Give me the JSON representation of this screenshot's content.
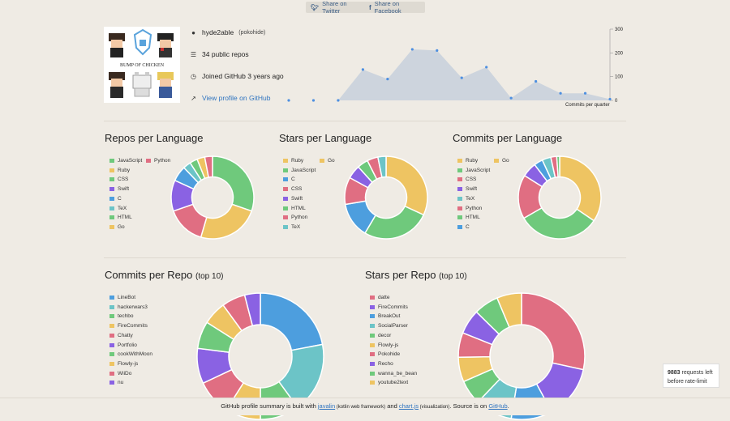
{
  "share": {
    "twitter": "Share on Twitter",
    "facebook": "Share on Facebook"
  },
  "profile": {
    "username": "hyde2able",
    "handle": "(pokohide)",
    "public_repos": "34 public repos",
    "joined": "Joined GitHub 3 years ago",
    "view_profile": "View profile on GitHub",
    "avatar_text": "BUMP OF CHICKEN"
  },
  "commits_chart": {
    "caption": "Commits per quarter",
    "chart_data": {
      "type": "area",
      "x": [
        1,
        2,
        3,
        4,
        5,
        6,
        7,
        8,
        9,
        10,
        11,
        12,
        13,
        14
      ],
      "values": [
        0,
        0,
        0,
        130,
        90,
        215,
        210,
        95,
        140,
        10,
        80,
        30,
        30,
        5
      ],
      "ylim": [
        0,
        300
      ],
      "yticks": [
        "300",
        "200",
        "100",
        "0"
      ]
    }
  },
  "sections": {
    "repos_lang": "Repos per Language",
    "stars_lang": "Stars per Language",
    "commits_lang": "Commits per Language",
    "commits_repo": "Commits per Repo",
    "stars_repo": "Stars per Repo",
    "top10": "(top 10)"
  },
  "colors": {
    "green": "#6fc97c",
    "yellow": "#eec462",
    "blue": "#4d9ede",
    "purple": "#8a62e3",
    "teal": "#6cc4c7",
    "red": "#e06e82"
  },
  "chart_data": [
    {
      "type": "pie",
      "name": "repos_lang",
      "legend": [
        "JavaScript",
        "Python",
        "Ruby",
        "CSS",
        "Swift",
        "C",
        "TeX",
        "HTML",
        "Go"
      ],
      "slices": [
        {
          "label": "JavaScript",
          "value": 10,
          "color": "#6fc97c"
        },
        {
          "label": "Ruby",
          "value": 8,
          "color": "#eec462"
        },
        {
          "label": "Python",
          "value": 5,
          "color": "#e06e82"
        },
        {
          "label": "Swift",
          "value": 4,
          "color": "#8a62e3"
        },
        {
          "label": "C",
          "value": 2,
          "color": "#4d9ede"
        },
        {
          "label": "TeX",
          "value": 1,
          "color": "#6cc4c7"
        },
        {
          "label": "CSS",
          "value": 1,
          "color": "#6fc97c"
        },
        {
          "label": "Go",
          "value": 1,
          "color": "#eec462"
        },
        {
          "label": "HTML",
          "value": 1,
          "color": "#e06e82"
        }
      ]
    },
    {
      "type": "pie",
      "name": "stars_lang",
      "legend": [
        "Ruby",
        "Go",
        "JavaScript",
        "C",
        "CSS",
        "Swift",
        "HTML",
        "Python",
        "TeX"
      ],
      "slices": [
        {
          "label": "Ruby",
          "value": 30,
          "color": "#eec462"
        },
        {
          "label": "JavaScript",
          "value": 25,
          "color": "#6fc97c"
        },
        {
          "label": "C",
          "value": 13,
          "color": "#4d9ede"
        },
        {
          "label": "CSS",
          "value": 10,
          "color": "#e06e82"
        },
        {
          "label": "Swift",
          "value": 5,
          "color": "#8a62e3"
        },
        {
          "label": "HTML",
          "value": 4,
          "color": "#6fc97c"
        },
        {
          "label": "Python",
          "value": 4,
          "color": "#e06e82"
        },
        {
          "label": "TeX",
          "value": 3,
          "color": "#6cc4c7"
        }
      ]
    },
    {
      "type": "pie",
      "name": "commits_lang",
      "legend": [
        "Ruby",
        "Go",
        "JavaScript",
        "CSS",
        "Swift",
        "TeX",
        "Python",
        "HTML",
        "C"
      ],
      "slices": [
        {
          "label": "Ruby",
          "value": 30,
          "color": "#eec462"
        },
        {
          "label": "JavaScript",
          "value": 28,
          "color": "#6fc97c"
        },
        {
          "label": "Python",
          "value": 15,
          "color": "#e06e82"
        },
        {
          "label": "Swift",
          "value": 5,
          "color": "#8a62e3"
        },
        {
          "label": "C",
          "value": 3,
          "color": "#4d9ede"
        },
        {
          "label": "TeX",
          "value": 3,
          "color": "#6cc4c7"
        },
        {
          "label": "HTML",
          "value": 2,
          "color": "#e06e82"
        },
        {
          "label": "CSS",
          "value": 1,
          "color": "#6fc97c"
        }
      ]
    },
    {
      "type": "pie",
      "name": "commits_repo",
      "legend": [
        "LineBot",
        "hackerwars3",
        "techbo",
        "FireCommits",
        "Chatty",
        "Portfolio",
        "cookWithMoon",
        "Flowly-js",
        "WiiDo",
        "nu"
      ],
      "slices": [
        {
          "label": "LineBot",
          "value": 22,
          "color": "#4d9ede"
        },
        {
          "label": "hackerwars3",
          "value": 18,
          "color": "#6cc4c7"
        },
        {
          "label": "techbo",
          "value": 10,
          "color": "#6fc97c"
        },
        {
          "label": "FireCommits",
          "value": 9,
          "color": "#eec462"
        },
        {
          "label": "Chatty",
          "value": 9,
          "color": "#e06e82"
        },
        {
          "label": "Portfolio",
          "value": 9,
          "color": "#8a62e3"
        },
        {
          "label": "cookWithMoon",
          "value": 7,
          "color": "#6fc97c"
        },
        {
          "label": "Flowly-js",
          "value": 6,
          "color": "#eec462"
        },
        {
          "label": "WiiDo",
          "value": 6,
          "color": "#e06e82"
        },
        {
          "label": "nu",
          "value": 4,
          "color": "#8a62e3"
        }
      ]
    },
    {
      "type": "pie",
      "name": "stars_repo",
      "legend": [
        "datte",
        "FireCommits",
        "BreakOut",
        "SocialParser",
        "decor",
        "Flowly-js",
        "Pokohide",
        "Recho",
        "wanna_be_bean",
        "youtube2text"
      ],
      "slices": [
        {
          "label": "datte",
          "value": 27,
          "color": "#e06e82"
        },
        {
          "label": "FireCommits",
          "value": 13,
          "color": "#8a62e3"
        },
        {
          "label": "BreakOut",
          "value": 10,
          "color": "#4d9ede"
        },
        {
          "label": "SocialParser",
          "value": 9,
          "color": "#6cc4c7"
        },
        {
          "label": "decor",
          "value": 6,
          "color": "#6fc97c"
        },
        {
          "label": "Flowly-js",
          "value": 6,
          "color": "#eec462"
        },
        {
          "label": "Pokohide",
          "value": 6,
          "color": "#e06e82"
        },
        {
          "label": "Recho",
          "value": 6,
          "color": "#8a62e3"
        },
        {
          "label": "wanna_be_bean",
          "value": 6,
          "color": "#6fc97c"
        },
        {
          "label": "youtube2text",
          "value": 6,
          "color": "#eec462"
        }
      ]
    }
  ],
  "legend_colors": {
    "repos_lang": [
      "#6fc97c",
      "#e06e82",
      "#eec462",
      "#6fc97c",
      "#8a62e3",
      "#4d9ede",
      "#6cc4c7",
      "#6fc97c",
      "#eec462"
    ],
    "stars_lang": [
      "#eec462",
      "#eec462",
      "#6fc97c",
      "#4d9ede",
      "#e06e82",
      "#8a62e3",
      "#6fc97c",
      "#e06e82",
      "#6cc4c7"
    ],
    "commits_lang": [
      "#eec462",
      "#eec462",
      "#6fc97c",
      "#e06e82",
      "#8a62e3",
      "#6cc4c7",
      "#e06e82",
      "#6fc97c",
      "#4d9ede"
    ],
    "commits_repo": [
      "#4d9ede",
      "#6cc4c7",
      "#6fc97c",
      "#eec462",
      "#e06e82",
      "#8a62e3",
      "#6fc97c",
      "#eec462",
      "#e06e82",
      "#8a62e3"
    ],
    "stars_repo": [
      "#e06e82",
      "#8a62e3",
      "#4d9ede",
      "#6cc4c7",
      "#6fc97c",
      "#eec462",
      "#e06e82",
      "#8a62e3",
      "#6fc97c",
      "#eec462"
    ]
  },
  "footer": {
    "pre": "GitHub profile summary is built with ",
    "javalin": "javalin",
    "javalin_note": " (kotlin web framework)",
    "and": " and ",
    "chartjs": "chart.js",
    "chartjs_note": " (visualization)",
    "source": ". Source is on ",
    "github": "GitHub",
    "end": "."
  },
  "rate": {
    "count": "9883",
    "text1": " requests left",
    "text2": "before rate-limit"
  }
}
